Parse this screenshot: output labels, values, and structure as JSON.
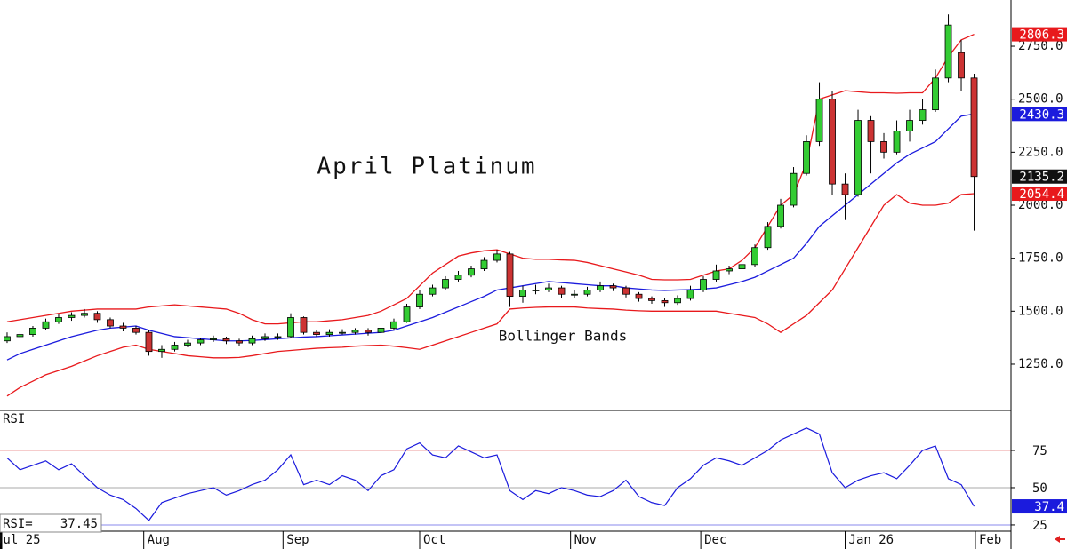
{
  "chart_data": [
    {
      "type": "candlestick",
      "annotations": [
        "April Platinum",
        "Bollinger Bands"
      ],
      "x": [
        0,
        1,
        2,
        3,
        4,
        5,
        6,
        7,
        8,
        9,
        10,
        11,
        12,
        13,
        14,
        15,
        16,
        17,
        18,
        19,
        20,
        21,
        22,
        23,
        24,
        25,
        26,
        27,
        28,
        29,
        30,
        31,
        32,
        33,
        34,
        35,
        36,
        37,
        38,
        39,
        40,
        41,
        42,
        43,
        44,
        45,
        46,
        47,
        48,
        49,
        50,
        51,
        52,
        53,
        54,
        55,
        56,
        57,
        58,
        59,
        60,
        61,
        62,
        63,
        64,
        65,
        66,
        67,
        68,
        69,
        70,
        71,
        72,
        73,
        74,
        75
      ],
      "open": [
        1360,
        1380,
        1390,
        1420,
        1450,
        1470,
        1480,
        1490,
        1460,
        1430,
        1420,
        1400,
        1310,
        1320,
        1340,
        1350,
        1365,
        1370,
        1360,
        1350,
        1370,
        1380,
        1380,
        1470,
        1400,
        1390,
        1400,
        1400,
        1410,
        1400,
        1420,
        1450,
        1520,
        1580,
        1610,
        1650,
        1670,
        1700,
        1740,
        1770,
        1570,
        1600,
        1600,
        1610,
        1580,
        1580,
        1600,
        1620,
        1610,
        1580,
        1560,
        1550,
        1540,
        1560,
        1600,
        1650,
        1690,
        1700,
        1720,
        1800,
        1900,
        2000,
        2150,
        2300,
        2500,
        2100,
        2050,
        2400,
        2300,
        2250,
        2350,
        2400,
        2450,
        2600,
        2720,
        2600
      ],
      "high": [
        1400,
        1405,
        1430,
        1465,
        1485,
        1495,
        1510,
        1500,
        1470,
        1445,
        1430,
        1410,
        1340,
        1355,
        1365,
        1375,
        1385,
        1380,
        1370,
        1385,
        1395,
        1395,
        1490,
        1475,
        1410,
        1415,
        1415,
        1420,
        1420,
        1430,
        1465,
        1535,
        1600,
        1625,
        1665,
        1690,
        1715,
        1755,
        1790,
        1780,
        1620,
        1625,
        1630,
        1620,
        1600,
        1615,
        1640,
        1630,
        1620,
        1590,
        1570,
        1560,
        1575,
        1620,
        1665,
        1720,
        1715,
        1735,
        1815,
        1920,
        2030,
        2180,
        2330,
        2580,
        2540,
        2150,
        2450,
        2420,
        2340,
        2400,
        2450,
        2500,
        2640,
        2900,
        2780,
        2620
      ],
      "low": [
        1350,
        1370,
        1380,
        1410,
        1440,
        1455,
        1470,
        1445,
        1420,
        1405,
        1390,
        1290,
        1280,
        1310,
        1330,
        1340,
        1355,
        1345,
        1335,
        1340,
        1360,
        1365,
        1375,
        1390,
        1380,
        1380,
        1390,
        1390,
        1385,
        1390,
        1410,
        1445,
        1510,
        1570,
        1600,
        1640,
        1660,
        1690,
        1730,
        1520,
        1540,
        1580,
        1590,
        1560,
        1560,
        1570,
        1590,
        1595,
        1565,
        1545,
        1535,
        1520,
        1530,
        1550,
        1590,
        1640,
        1675,
        1690,
        1710,
        1790,
        1890,
        1990,
        2140,
        2280,
        2050,
        1930,
        2040,
        2150,
        2220,
        2240,
        2300,
        2380,
        2440,
        2580,
        2540,
        1880
      ],
      "close": [
        1380,
        1390,
        1420,
        1450,
        1470,
        1480,
        1490,
        1460,
        1430,
        1420,
        1400,
        1310,
        1320,
        1340,
        1350,
        1365,
        1370,
        1360,
        1350,
        1370,
        1380,
        1380,
        1470,
        1400,
        1390,
        1400,
        1400,
        1410,
        1400,
        1420,
        1450,
        1520,
        1580,
        1610,
        1650,
        1670,
        1700,
        1740,
        1770,
        1570,
        1600,
        1600,
        1610,
        1580,
        1580,
        1600,
        1620,
        1610,
        1580,
        1560,
        1550,
        1540,
        1560,
        1600,
        1650,
        1690,
        1700,
        1720,
        1800,
        1900,
        2000,
        2150,
        2300,
        2500,
        2100,
        2050,
        2400,
        2300,
        2250,
        2350,
        2400,
        2450,
        2600,
        2850,
        2600,
        2135.2
      ],
      "up_color": "#33cc33",
      "down_color": "#cc3333",
      "close_box_color": "#111111",
      "bands": [
        {
          "color": "#e8191c",
          "values": [
            1450,
            1460,
            1470,
            1480,
            1490,
            1500,
            1505,
            1510,
            1510,
            1510,
            1510,
            1520,
            1525,
            1530,
            1525,
            1520,
            1515,
            1510,
            1490,
            1460,
            1440,
            1440,
            1445,
            1450,
            1450,
            1455,
            1460,
            1470,
            1480,
            1500,
            1530,
            1560,
            1620,
            1680,
            1720,
            1760,
            1775,
            1785,
            1790,
            1770,
            1750,
            1745,
            1745,
            1742,
            1740,
            1730,
            1715,
            1700,
            1685,
            1670,
            1650,
            1648,
            1648,
            1650,
            1670,
            1690,
            1700,
            1740,
            1800,
            1900,
            2000,
            2050,
            2200,
            2500,
            2520,
            2540,
            2535,
            2530,
            2530,
            2528,
            2530,
            2530,
            2600,
            2700,
            2780,
            2806.3
          ]
        },
        {
          "color": "#1b1bdd",
          "values": [
            1270,
            1300,
            1320,
            1340,
            1360,
            1380,
            1395,
            1410,
            1420,
            1425,
            1430,
            1410,
            1395,
            1380,
            1375,
            1370,
            1365,
            1360,
            1360,
            1362,
            1366,
            1370,
            1374,
            1378,
            1380,
            1384,
            1388,
            1392,
            1396,
            1400,
            1410,
            1430,
            1450,
            1470,
            1495,
            1520,
            1545,
            1570,
            1600,
            1610,
            1620,
            1630,
            1640,
            1635,
            1630,
            1625,
            1620,
            1620,
            1610,
            1605,
            1600,
            1598,
            1600,
            1602,
            1605,
            1610,
            1625,
            1640,
            1660,
            1690,
            1720,
            1750,
            1820,
            1900,
            1950,
            2000,
            2050,
            2100,
            2150,
            2200,
            2240,
            2270,
            2300,
            2360,
            2420,
            2430.3
          ]
        },
        {
          "color": "#e8191c",
          "values": [
            1100,
            1140,
            1170,
            1200,
            1220,
            1240,
            1265,
            1290,
            1310,
            1330,
            1340,
            1320,
            1310,
            1300,
            1290,
            1285,
            1280,
            1280,
            1282,
            1290,
            1300,
            1310,
            1315,
            1320,
            1325,
            1328,
            1330,
            1335,
            1338,
            1340,
            1335,
            1328,
            1320,
            1340,
            1360,
            1380,
            1400,
            1420,
            1440,
            1510,
            1515,
            1518,
            1520,
            1520,
            1520,
            1515,
            1512,
            1510,
            1505,
            1502,
            1500,
            1500,
            1500,
            1500,
            1500,
            1500,
            1490,
            1480,
            1470,
            1440,
            1400,
            1440,
            1480,
            1540,
            1600,
            1700,
            1800,
            1900,
            2000,
            2050,
            2010,
            2000,
            2000,
            2010,
            2050,
            2054.4
          ]
        }
      ],
      "xlim": [
        -0.55,
        77.86
      ],
      "ylim": [
        1032,
        2968
      ],
      "yticks": [
        {
          "value": 1250,
          "label": "1250.0"
        },
        {
          "value": 1500,
          "label": "1500.0"
        },
        {
          "value": 1750,
          "label": "1750.0"
        },
        {
          "value": 2000,
          "label": "2000.0"
        },
        {
          "value": 2250,
          "label": "2250.0"
        },
        {
          "value": 2500,
          "label": "2500.0"
        },
        {
          "value": 2750,
          "label": "2750.0"
        }
      ]
    },
    {
      "type": "line",
      "title": "RSI",
      "readout_label": "RSI=",
      "last_label": "37.4",
      "color": "#1b1bdd",
      "x": [
        0,
        1,
        2,
        3,
        4,
        5,
        6,
        7,
        8,
        9,
        10,
        11,
        12,
        13,
        14,
        15,
        16,
        17,
        18,
        19,
        20,
        21,
        22,
        23,
        24,
        25,
        26,
        27,
        28,
        29,
        30,
        31,
        32,
        33,
        34,
        35,
        36,
        37,
        38,
        39,
        40,
        41,
        42,
        43,
        44,
        45,
        46,
        47,
        48,
        49,
        50,
        51,
        52,
        53,
        54,
        55,
        56,
        57,
        58,
        59,
        60,
        61,
        62,
        63,
        64,
        65,
        66,
        67,
        68,
        69,
        70,
        71,
        72,
        73,
        74,
        75
      ],
      "values": [
        70,
        62,
        65,
        68,
        62,
        66,
        58,
        50,
        45,
        42,
        36,
        28,
        40,
        43,
        46,
        48,
        50,
        45,
        48,
        52,
        55,
        62,
        72,
        52,
        55,
        52,
        58,
        55,
        48,
        58,
        62,
        76,
        80,
        72,
        70,
        78,
        74,
        70,
        72,
        48,
        42,
        48,
        46,
        50,
        48,
        45,
        44,
        48,
        55,
        44,
        40,
        38,
        50,
        56,
        65,
        70,
        68,
        65,
        70,
        75,
        82,
        86,
        90,
        86,
        60,
        50,
        55,
        58,
        60,
        56,
        65,
        75,
        78,
        56,
        52,
        37.45
      ],
      "xlim": [
        -0.55,
        77.86
      ],
      "ylim": [
        20.8,
        101.8
      ],
      "yticks": [
        25,
        50,
        75
      ],
      "ytick_colors": [
        "#8888ee",
        "#aaaaaa",
        "#ee9999"
      ],
      "xticks": [
        {
          "value": -0.55,
          "label": "Jul 25"
        },
        {
          "value": 10.6,
          "label": "Aug"
        },
        {
          "value": 21.4,
          "label": "Sep"
        },
        {
          "value": 32.0,
          "label": "Oct"
        },
        {
          "value": 43.7,
          "label": "Nov"
        },
        {
          "value": 53.8,
          "label": "Dec"
        },
        {
          "value": 65.0,
          "label": "Jan 26"
        },
        {
          "value": 75.1,
          "label": "Feb"
        }
      ]
    }
  ]
}
